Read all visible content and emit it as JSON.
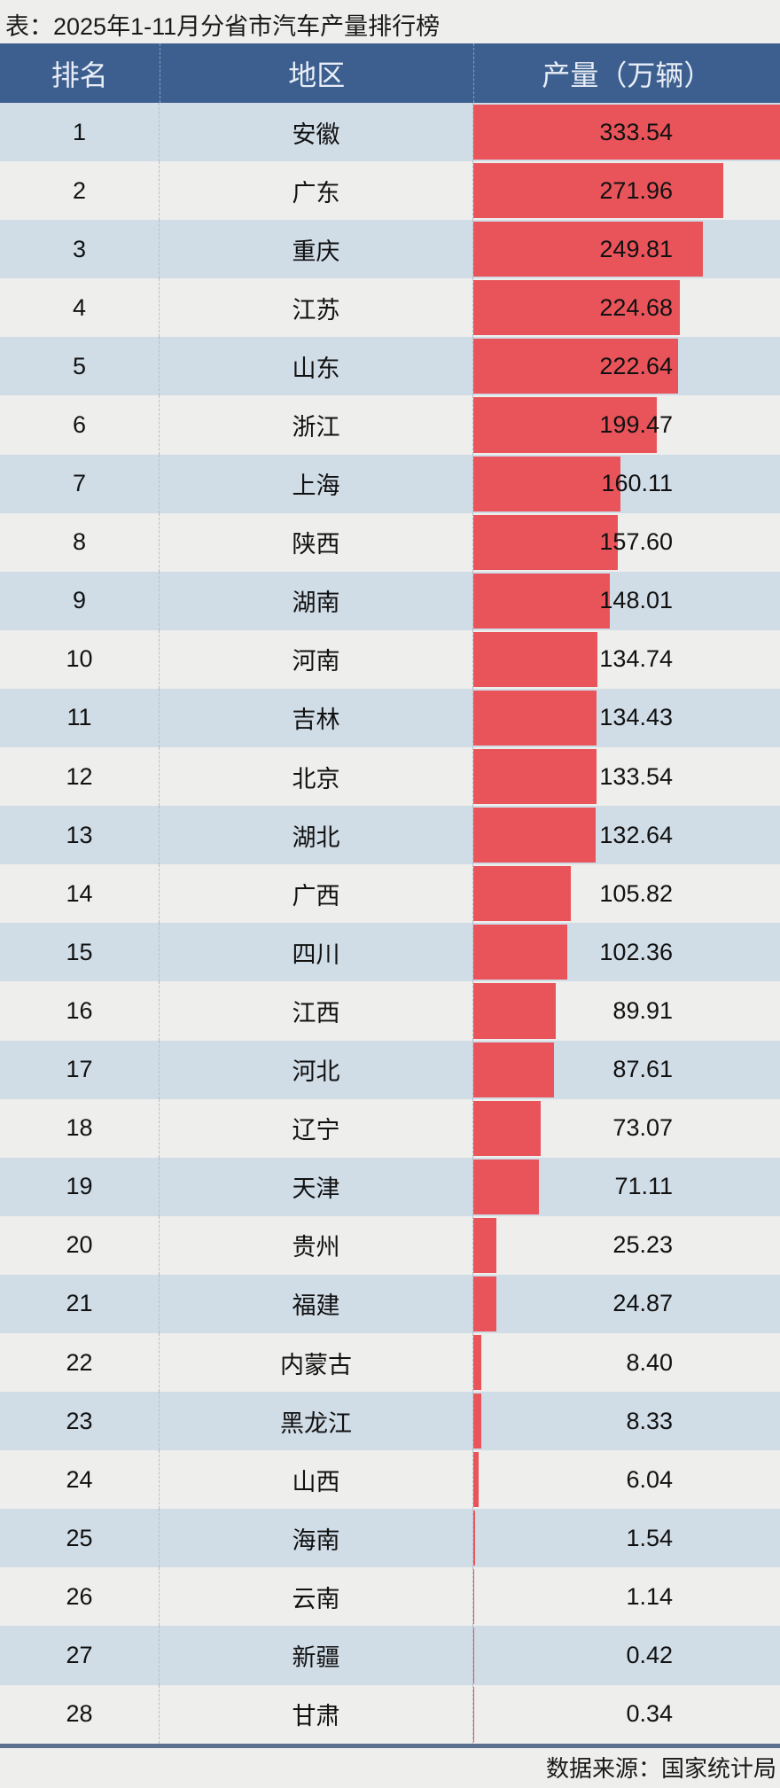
{
  "title": "表：2025年1-11月分省市汽车产量排行榜",
  "source": "数据来源：国家统计局",
  "colors": {
    "header": "#3d5f8f",
    "bar": "#e9545b",
    "row_alt": "#d0dce6",
    "row": "#eeeeec"
  },
  "chart_data": {
    "type": "table",
    "columns": [
      "排名",
      "地区",
      "产量（万辆）"
    ],
    "rows": [
      {
        "rank": "1",
        "region": "安徽",
        "value": "333.54"
      },
      {
        "rank": "2",
        "region": "广东",
        "value": "271.96"
      },
      {
        "rank": "3",
        "region": "重庆",
        "value": "249.81"
      },
      {
        "rank": "4",
        "region": "江苏",
        "value": "224.68"
      },
      {
        "rank": "5",
        "region": "山东",
        "value": "222.64"
      },
      {
        "rank": "6",
        "region": "浙江",
        "value": "199.47"
      },
      {
        "rank": "7",
        "region": "上海",
        "value": "160.11"
      },
      {
        "rank": "8",
        "region": "陕西",
        "value": "157.60"
      },
      {
        "rank": "9",
        "region": "湖南",
        "value": "148.01"
      },
      {
        "rank": "10",
        "region": "河南",
        "value": "134.74"
      },
      {
        "rank": "11",
        "region": "吉林",
        "value": "134.43"
      },
      {
        "rank": "12",
        "region": "北京",
        "value": "133.54"
      },
      {
        "rank": "13",
        "region": "湖北",
        "value": "132.64"
      },
      {
        "rank": "14",
        "region": "广西",
        "value": "105.82"
      },
      {
        "rank": "15",
        "region": "四川",
        "value": "102.36"
      },
      {
        "rank": "16",
        "region": "江西",
        "value": "89.91"
      },
      {
        "rank": "17",
        "region": "河北",
        "value": "87.61"
      },
      {
        "rank": "18",
        "region": "辽宁",
        "value": "73.07"
      },
      {
        "rank": "19",
        "region": "天津",
        "value": "71.11"
      },
      {
        "rank": "20",
        "region": "贵州",
        "value": "25.23"
      },
      {
        "rank": "21",
        "region": "福建",
        "value": "24.87"
      },
      {
        "rank": "22",
        "region": "内蒙古",
        "value": "8.40"
      },
      {
        "rank": "23",
        "region": "黑龙江",
        "value": "8.33"
      },
      {
        "rank": "24",
        "region": "山西",
        "value": "6.04"
      },
      {
        "rank": "25",
        "region": "海南",
        "value": "1.54"
      },
      {
        "rank": "26",
        "region": "云南",
        "value": "1.14"
      },
      {
        "rank": "27",
        "region": "新疆",
        "value": "0.42"
      },
      {
        "rank": "28",
        "region": "甘肃",
        "value": "0.34"
      }
    ]
  }
}
